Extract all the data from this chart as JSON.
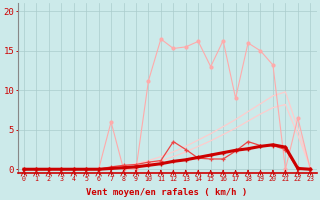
{
  "x": [
    0,
    1,
    2,
    3,
    4,
    5,
    6,
    7,
    8,
    9,
    10,
    11,
    12,
    13,
    14,
    15,
    16,
    17,
    18,
    19,
    20,
    21,
    22,
    23
  ],
  "line_straight1_y": [
    0,
    0,
    0,
    0,
    0,
    0,
    0,
    0.2,
    0.4,
    0.7,
    1.1,
    1.6,
    2.2,
    2.9,
    3.7,
    4.5,
    5.4,
    6.3,
    7.3,
    8.3,
    9.3,
    9.8,
    5.2,
    0.3
  ],
  "line_straight2_y": [
    0,
    0,
    0,
    0,
    0,
    0,
    0,
    0.1,
    0.2,
    0.4,
    0.7,
    1.1,
    1.6,
    2.2,
    2.9,
    3.6,
    4.4,
    5.2,
    6.1,
    7.0,
    7.8,
    8.2,
    4.3,
    0.2
  ],
  "line_jagged_upper_y": [
    0,
    0,
    0,
    0,
    0,
    0,
    0,
    6.0,
    0,
    0,
    11.2,
    16.5,
    15.3,
    15.5,
    16.2,
    13.0,
    16.3,
    9.0,
    16.0,
    15.0,
    13.2,
    0,
    6.5,
    0
  ],
  "line_mid_jagged_y": [
    0,
    0,
    0,
    0,
    0,
    0,
    0,
    0.3,
    0.5,
    0.6,
    0.9,
    1.1,
    3.5,
    2.5,
    1.4,
    1.3,
    1.3,
    2.3,
    3.5,
    3.0,
    3.0,
    2.5,
    0.0,
    0.0
  ],
  "line_dark_thick_y": [
    0,
    0,
    0,
    0,
    0,
    0,
    0,
    0.1,
    0.2,
    0.3,
    0.5,
    0.7,
    1.0,
    1.2,
    1.5,
    1.8,
    2.1,
    2.4,
    2.6,
    2.9,
    3.1,
    2.8,
    0.1,
    0.0
  ],
  "bg_color": "#cceaea",
  "grid_color": "#aacccc",
  "color_dark_red": "#cc0000",
  "color_mid_red": "#ee4444",
  "color_light_pink": "#ffaaaa",
  "color_pale_pink": "#ffcccc",
  "ylabel_values": [
    0,
    5,
    10,
    15,
    20
  ],
  "xlabel": "Vent moyen/en rafales ( km/h )",
  "xlim": [
    -0.5,
    23.5
  ],
  "ylim": [
    -0.5,
    21
  ]
}
